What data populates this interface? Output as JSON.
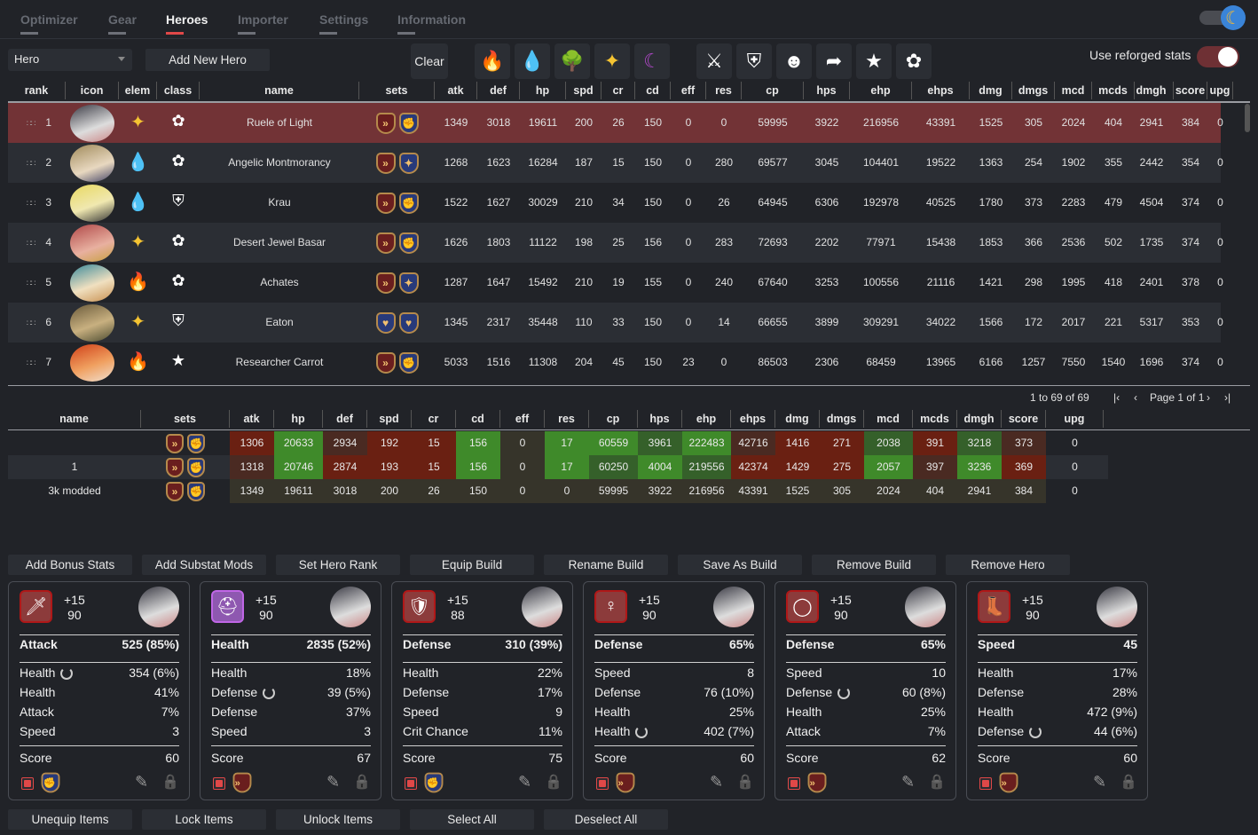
{
  "nav": {
    "tabs": [
      {
        "label": "Optimizer"
      },
      {
        "label": "Gear"
      },
      {
        "label": "Heroes",
        "active": true
      },
      {
        "label": "Importer"
      },
      {
        "label": "Settings"
      },
      {
        "label": "Information"
      }
    ],
    "theme_icon": "moon-icon"
  },
  "toolbar": {
    "hero_select_value": "Hero",
    "add_new_hero": "Add New Hero",
    "clear": "Clear",
    "element_filters": [
      "fire",
      "ice",
      "earth",
      "light",
      "dark"
    ],
    "class_filters": [
      "warrior",
      "knight",
      "thief",
      "ranger",
      "mage",
      "soul-weaver"
    ],
    "reforge_label": "Use reforged stats",
    "reforge_on": true
  },
  "colors": {
    "accent": "#e04848",
    "selected_row": "#723336",
    "good": "#3f8a2a",
    "bad": "#6a2012"
  },
  "hero_table": {
    "columns": [
      "rank",
      "icon",
      "elem",
      "class",
      "name",
      "sets",
      "atk",
      "def",
      "hp",
      "spd",
      "cr",
      "cd",
      "eff",
      "res",
      "cp",
      "hps",
      "ehp",
      "ehps",
      "dmg",
      "dmgs",
      "mcd",
      "mcds",
      "dmgh",
      "score",
      "upg"
    ],
    "rows": [
      {
        "rank": "1",
        "elem": "light",
        "class": "soul-weaver",
        "name": "Ruele of Light",
        "sets": [
          "speed",
          "attack"
        ],
        "vals": [
          "1349",
          "3018",
          "19611",
          "200",
          "26",
          "150",
          "0",
          "0",
          "59995",
          "3922",
          "216956",
          "43391",
          "1525",
          "305",
          "2024",
          "404",
          "2941",
          "384",
          "0"
        ],
        "selected": true
      },
      {
        "rank": "2",
        "elem": "ice",
        "class": "soul-weaver",
        "name": "Angelic Montmorancy",
        "sets": [
          "speed",
          "critical"
        ],
        "vals": [
          "1268",
          "1623",
          "16284",
          "187",
          "15",
          "150",
          "0",
          "280",
          "69577",
          "3045",
          "104401",
          "19522",
          "1363",
          "254",
          "1902",
          "355",
          "2442",
          "354",
          "0"
        ]
      },
      {
        "rank": "3",
        "elem": "ice",
        "class": "knight",
        "name": "Krau",
        "sets": [
          "speed",
          "attack"
        ],
        "vals": [
          "1522",
          "1627",
          "30029",
          "210",
          "34",
          "150",
          "0",
          "26",
          "64945",
          "6306",
          "192978",
          "40525",
          "1780",
          "373",
          "2283",
          "479",
          "4504",
          "374",
          "0"
        ]
      },
      {
        "rank": "4",
        "elem": "light",
        "class": "soul-weaver",
        "name": "Desert Jewel Basar",
        "sets": [
          "speed",
          "attack"
        ],
        "vals": [
          "1626",
          "1803",
          "11122",
          "198",
          "25",
          "156",
          "0",
          "283",
          "72693",
          "2202",
          "77971",
          "15438",
          "1853",
          "366",
          "2536",
          "502",
          "1735",
          "374",
          "0"
        ]
      },
      {
        "rank": "5",
        "elem": "fire",
        "class": "soul-weaver",
        "name": "Achates",
        "sets": [
          "speed",
          "critical"
        ],
        "vals": [
          "1287",
          "1647",
          "15492",
          "210",
          "19",
          "155",
          "0",
          "240",
          "67640",
          "3253",
          "100556",
          "21116",
          "1421",
          "298",
          "1995",
          "418",
          "2401",
          "378",
          "0"
        ]
      },
      {
        "rank": "6",
        "elem": "light",
        "class": "knight",
        "name": "Eaton",
        "sets": [
          "health",
          "health"
        ],
        "vals": [
          "1345",
          "2317",
          "35448",
          "110",
          "33",
          "150",
          "0",
          "14",
          "66655",
          "3899",
          "309291",
          "34022",
          "1566",
          "172",
          "2017",
          "221",
          "5317",
          "353",
          "0"
        ]
      },
      {
        "rank": "7",
        "elem": "fire",
        "class": "mage",
        "name": "Researcher Carrot",
        "sets": [
          "speed",
          "attack"
        ],
        "vals": [
          "5033",
          "1516",
          "11308",
          "204",
          "45",
          "150",
          "23",
          "0",
          "86503",
          "2306",
          "68459",
          "13965",
          "6166",
          "1257",
          "7550",
          "1540",
          "1696",
          "374",
          "0"
        ]
      }
    ]
  },
  "pager": {
    "summary": "1 to 69 of 69",
    "page_text": "Page 1 of 1"
  },
  "build_table": {
    "columns": [
      "name",
      "sets",
      "atk",
      "hp",
      "def",
      "spd",
      "cr",
      "cd",
      "eff",
      "res",
      "cp",
      "hps",
      "ehp",
      "ehps",
      "dmg",
      "dmgs",
      "mcd",
      "mcds",
      "dmgh",
      "score",
      "upg"
    ],
    "rows": [
      {
        "name": "",
        "sets": [
          "speed",
          "attack"
        ],
        "vals": [
          "1306",
          "20633",
          "2934",
          "192",
          "15",
          "156",
          "0",
          "17",
          "60559",
          "3961",
          "222483",
          "42716",
          "1416",
          "271",
          "2038",
          "391",
          "3218",
          "373",
          "0"
        ],
        "tone": [
          "b",
          "g",
          "b2",
          "b",
          "b",
          "g",
          "n",
          "g",
          "g",
          "g2",
          "g",
          "b2",
          "b",
          "b",
          "g2",
          "b",
          "g2",
          "b2",
          "x"
        ]
      },
      {
        "name": "1",
        "sets": [
          "speed",
          "attack"
        ],
        "vals": [
          "1318",
          "20746",
          "2874",
          "193",
          "15",
          "156",
          "0",
          "17",
          "60250",
          "4004",
          "219556",
          "42374",
          "1429",
          "275",
          "2057",
          "397",
          "3236",
          "369",
          "0"
        ],
        "tone": [
          "b2",
          "g",
          "b",
          "b",
          "b",
          "g",
          "n",
          "g",
          "g2",
          "g",
          "g2",
          "b",
          "b",
          "b",
          "g",
          "b2",
          "g",
          "b",
          "x"
        ]
      },
      {
        "name": "3k modded",
        "sets": [
          "speed",
          "attack"
        ],
        "vals": [
          "1349",
          "19611",
          "3018",
          "200",
          "26",
          "150",
          "0",
          "0",
          "59995",
          "3922",
          "216956",
          "43391",
          "1525",
          "305",
          "2024",
          "404",
          "2941",
          "384",
          "0"
        ],
        "tone": [
          "n",
          "n",
          "n",
          "n",
          "n",
          "n",
          "n",
          "n",
          "n",
          "n",
          "n",
          "n",
          "n",
          "n",
          "n",
          "n",
          "n",
          "n",
          "x"
        ]
      }
    ]
  },
  "actions_top": [
    "Add Bonus Stats",
    "Add Substat Mods",
    "Set Hero Rank",
    "Equip Build",
    "Rename Build",
    "Save As Build",
    "Remove Build",
    "Remove Hero"
  ],
  "actions_bottom": [
    "Unequip Items",
    "Lock Items",
    "Unlock Items",
    "Select All",
    "Deselect All"
  ],
  "gear_cards": [
    {
      "slot": "weapon",
      "icon": "sword-icon",
      "rarity": "heroic",
      "enhance": "+15",
      "level": "90",
      "main_stat": "Attack",
      "main_value": "525 (85%)",
      "subs": [
        {
          "name": "Health",
          "value": "354 (6%)",
          "reforged": true
        },
        {
          "name": "Health",
          "value": "41%"
        },
        {
          "name": "Attack",
          "value": "7%"
        },
        {
          "name": "Speed",
          "value": "3"
        }
      ],
      "score_label": "Score",
      "score": "60",
      "set": "attack"
    },
    {
      "slot": "helmet",
      "icon": "helmet-icon",
      "rarity": "epic",
      "enhance": "+15",
      "level": "90",
      "main_stat": "Health",
      "main_value": "2835 (52%)",
      "subs": [
        {
          "name": "Health",
          "value": "18%"
        },
        {
          "name": "Defense",
          "value": "39 (5%)",
          "reforged": true
        },
        {
          "name": "Defense",
          "value": "37%"
        },
        {
          "name": "Speed",
          "value": "3"
        }
      ],
      "score_label": "Score",
      "score": "67",
      "set": "speed"
    },
    {
      "slot": "armor",
      "icon": "armor-icon",
      "rarity": "heroic",
      "enhance": "+15",
      "level": "88",
      "main_stat": "Defense",
      "main_value": "310 (39%)",
      "subs": [
        {
          "name": "Health",
          "value": "22%"
        },
        {
          "name": "Defense",
          "value": "17%"
        },
        {
          "name": "Speed",
          "value": "9"
        },
        {
          "name": "Crit Chance",
          "value": "11%"
        }
      ],
      "score_label": "Score",
      "score": "75",
      "set": "attack"
    },
    {
      "slot": "necklace",
      "icon": "necklace-icon",
      "rarity": "heroic",
      "enhance": "+15",
      "level": "90",
      "main_stat": "Defense",
      "main_value": "65%",
      "subs": [
        {
          "name": "Speed",
          "value": "8"
        },
        {
          "name": "Defense",
          "value": "76 (10%)"
        },
        {
          "name": "Health",
          "value": "25%"
        },
        {
          "name": "Health",
          "value": "402 (7%)",
          "reforged": true
        }
      ],
      "score_label": "Score",
      "score": "60",
      "set": "speed"
    },
    {
      "slot": "ring",
      "icon": "ring-icon",
      "rarity": "heroic",
      "enhance": "+15",
      "level": "90",
      "main_stat": "Defense",
      "main_value": "65%",
      "subs": [
        {
          "name": "Speed",
          "value": "10"
        },
        {
          "name": "Defense",
          "value": "60 (8%)",
          "reforged": true
        },
        {
          "name": "Health",
          "value": "25%"
        },
        {
          "name": "Attack",
          "value": "7%"
        }
      ],
      "score_label": "Score",
      "score": "62",
      "set": "speed"
    },
    {
      "slot": "boots",
      "icon": "boots-icon",
      "rarity": "heroic",
      "enhance": "+15",
      "level": "90",
      "main_stat": "Speed",
      "main_value": "45",
      "subs": [
        {
          "name": "Health",
          "value": "17%"
        },
        {
          "name": "Defense",
          "value": "28%"
        },
        {
          "name": "Health",
          "value": "472 (9%)"
        },
        {
          "name": "Defense",
          "value": "44 (6%)",
          "reforged": true
        }
      ],
      "score_label": "Score",
      "score": "60",
      "set": "speed"
    }
  ]
}
